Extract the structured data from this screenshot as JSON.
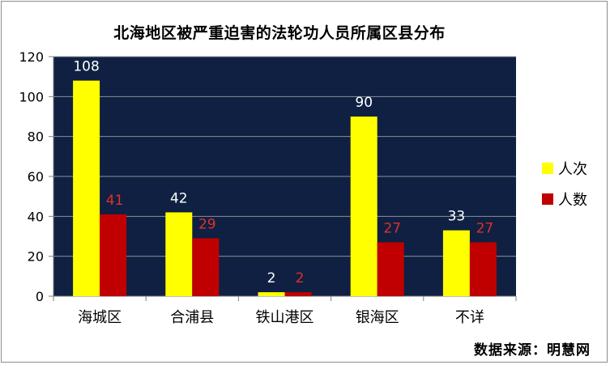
{
  "chart_data": {
    "type": "bar",
    "title": "北海地区被严重迫害的法轮功人员所属区县分布",
    "categories": [
      "海城区",
      "合浦县",
      "铁山港区",
      "银海区",
      "不详"
    ],
    "series": [
      {
        "name": "人次",
        "values": [
          108,
          42,
          2,
          90,
          33
        ],
        "color": "#ffff00",
        "label_color": "#ffffff"
      },
      {
        "name": "人数",
        "values": [
          41,
          29,
          2,
          27,
          27
        ],
        "color": "#c00000",
        "label_color": "#e0302a"
      }
    ],
    "ylim": [
      0,
      120
    ],
    "yticks": [
      0,
      20,
      40,
      60,
      80,
      100,
      120
    ],
    "grid": true,
    "legend_position": "right",
    "plot_background": "#0f2042",
    "xlabel": "",
    "ylabel": ""
  },
  "source_note": "数据来源：明慧网"
}
